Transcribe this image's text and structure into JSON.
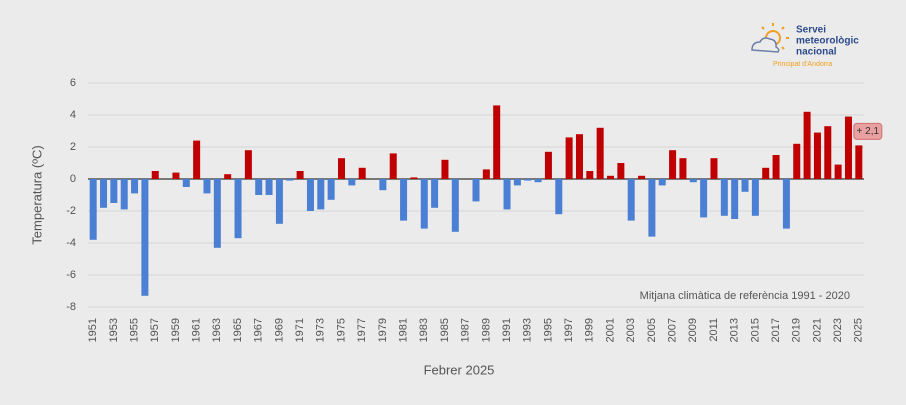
{
  "chart_data": {
    "type": "bar",
    "ylabel": "Temperatura (ºC)",
    "xlabel": "Febrer 2025",
    "note": "Mitjana climàtica de referència 1991 - 2020",
    "categories": [
      "1951",
      null,
      "1953",
      null,
      "1955",
      null,
      "1957",
      null,
      "1959",
      null,
      "1961",
      null,
      "1963",
      null,
      "1965",
      null,
      "1967",
      null,
      "1969",
      null,
      "1971",
      null,
      "1973",
      null,
      "1975",
      null,
      "1977",
      null,
      "1979",
      null,
      "1981",
      null,
      "1983",
      null,
      "1985",
      null,
      "1987",
      null,
      "1989",
      null,
      "1991",
      null,
      "1993",
      null,
      "1995",
      null,
      "1997",
      null,
      "1999",
      null,
      "2001",
      null,
      "2003",
      null,
      "2005",
      null,
      "2007",
      null,
      "2009",
      null,
      "2011",
      null,
      "2013",
      null,
      "2015",
      null,
      "2017",
      null,
      "2019",
      null,
      "2021",
      null,
      "2023",
      null,
      "2025"
    ],
    "values": [
      -3.8,
      -1.8,
      -1.5,
      -1.9,
      -0.9,
      -7.3,
      0.5,
      0,
      0.4,
      -0.5,
      2.4,
      -0.9,
      -4.3,
      0.3,
      -3.7,
      1.8,
      -1.0,
      -1.0,
      -2.8,
      -0.1,
      0.5,
      -2.0,
      -1.9,
      -1.3,
      1.3,
      -0.4,
      0.7,
      0,
      -0.7,
      1.6,
      -2.6,
      0.1,
      -3.1,
      -1.8,
      1.2,
      -3.3,
      0,
      -1.4,
      0.6,
      4.6,
      -1.9,
      -0.4,
      -0.1,
      -0.2,
      1.7,
      -2.2,
      2.6,
      2.8,
      0.5,
      3.2,
      0.2,
      1.0,
      -2.6,
      0.2,
      -3.6,
      -0.4,
      1.8,
      1.3,
      -0.2,
      -2.4,
      1.3,
      -2.3,
      -2.5,
      -0.8,
      -2.3,
      0.7,
      1.5,
      -3.1,
      2.2,
      4.2,
      2.9,
      3.3,
      0.9,
      3.9,
      2.1
    ],
    "value_labels": [
      null,
      null,
      null,
      null,
      null,
      null,
      null,
      null,
      null,
      null,
      null,
      null,
      null,
      null,
      null,
      null,
      null,
      null,
      null,
      null,
      null,
      null,
      null,
      null,
      null,
      null,
      null,
      null,
      null,
      null,
      null,
      null,
      null,
      null,
      null,
      null,
      null,
      null,
      null,
      null,
      null,
      null,
      null,
      null,
      null,
      null,
      null,
      null,
      null,
      null,
      null,
      null,
      null,
      null,
      null,
      null,
      null,
      null,
      null,
      null,
      null,
      null,
      null,
      null,
      null,
      null,
      null,
      null,
      null,
      null,
      null,
      null,
      null,
      null,
      "+ 2,1"
    ],
    "colors": {
      "positive": "#c00000",
      "negative": "#4a7fd4"
    },
    "ylim": [
      -8,
      6
    ],
    "yticks": [
      -8,
      -6,
      -4,
      -2,
      0,
      2,
      4,
      6
    ],
    "grid": true
  },
  "logo": {
    "lines": [
      "Servei",
      "meteorològic",
      "nacional"
    ],
    "subtitle": "Principat d'Andorra"
  }
}
